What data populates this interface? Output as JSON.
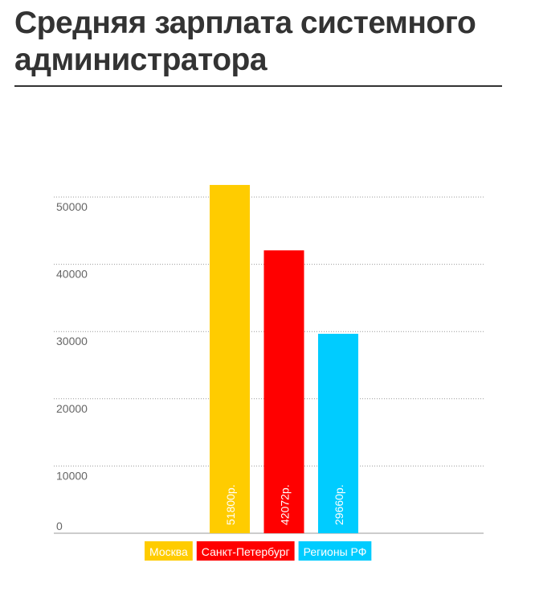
{
  "chart_data": {
    "type": "bar",
    "title": "Средняя зарплата системного администратора",
    "categories": [
      "Москва",
      "Санкт-Петербург",
      "Регионы РФ"
    ],
    "values": [
      51800,
      42072,
      29660
    ],
    "value_labels": [
      "51800р.",
      "42072р.",
      "29660р."
    ],
    "colors": [
      "#ffcc00",
      "#ff0000",
      "#00ccff"
    ],
    "ylim": [
      0,
      50000
    ],
    "yticks": [
      0,
      10000,
      20000,
      30000,
      40000,
      50000
    ],
    "grid": true
  }
}
